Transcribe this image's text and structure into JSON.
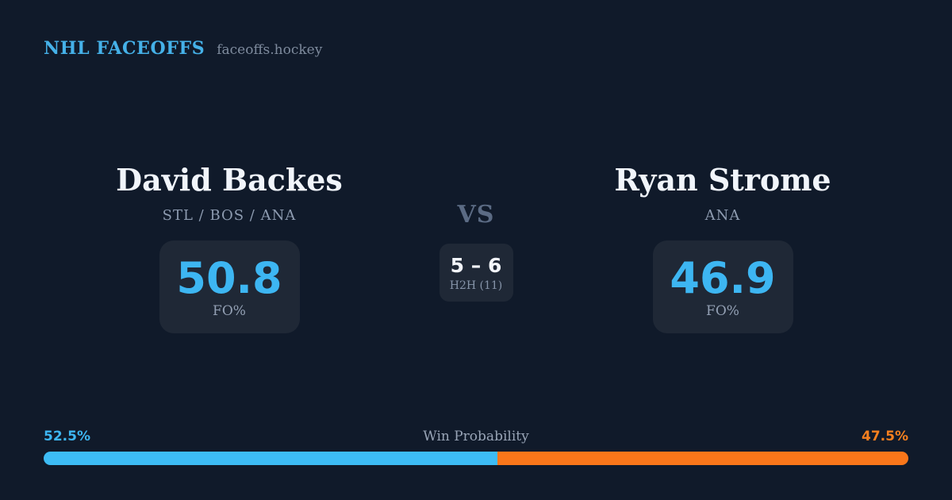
{
  "colors": {
    "background": "#101a2a",
    "card_background": "#1f2836",
    "accent_blue": "#3db6f2",
    "accent_orange": "#f9761a",
    "brand_blue": "#45b1e8",
    "text_primary": "#f1f5fb",
    "text_muted": "#8d9bb0",
    "vs_gray": "#5b6b84"
  },
  "brand": {
    "title": "NHL FACEOFFS",
    "domain": "faceoffs.hockey"
  },
  "matchup": {
    "player_left": {
      "name": "David Backes",
      "teams": "STL / BOS / ANA",
      "stat_value": "50.8",
      "stat_label": "FO%"
    },
    "vs_label": "VS",
    "h2h": {
      "score": "5 – 6",
      "label": "H2H (11)"
    },
    "player_right": {
      "name": "Ryan Strome",
      "teams": "ANA",
      "stat_value": "46.9",
      "stat_label": "FO%"
    }
  },
  "win_probability": {
    "title": "Win Probability",
    "left_pct": "52.5%",
    "right_pct": "47.5%",
    "left_value": 52.5,
    "right_value": 47.5
  }
}
